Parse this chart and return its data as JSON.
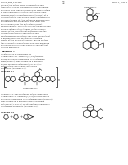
{
  "background_color": "#ffffff",
  "header_left": "US 8,080,135 B2",
  "header_center": "72",
  "header_right": "Nov. 1, 2011",
  "col_div": 62
}
